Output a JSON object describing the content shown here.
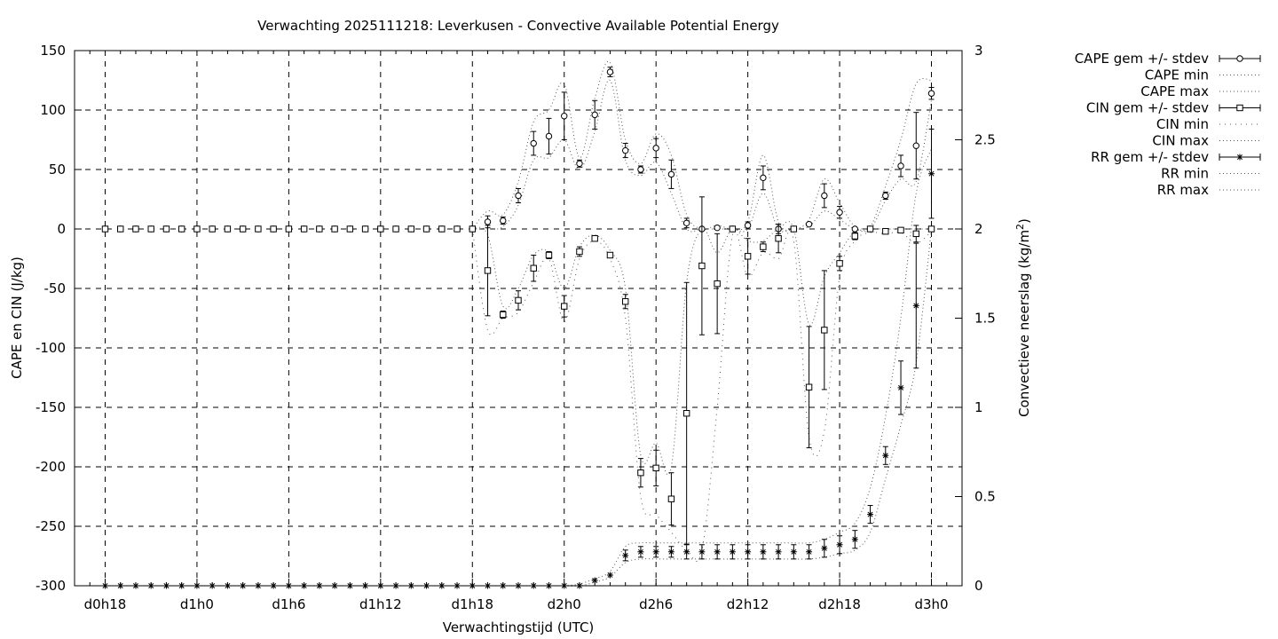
{
  "chart_data": {
    "type": "line",
    "title": "Verwachting 2025111218: Leverkusen - Convective Available Potential Energy",
    "xlabel": "Verwachtingstijd (UTC)",
    "ylabel": "CAPE en CIN (J/kg)",
    "y2label_main": "Convectieve neerslag (kg/m",
    "y2label_sup": "2",
    "y2label_end": ")",
    "x_unit": "hours since d0h18",
    "xlim": [
      -2,
      56
    ],
    "ylim": [
      -300,
      150
    ],
    "y2lim": [
      0,
      3
    ],
    "x_ticks": [
      {
        "x": 0,
        "label": "d0h18"
      },
      {
        "x": 6,
        "label": "d1h0"
      },
      {
        "x": 12,
        "label": "d1h6"
      },
      {
        "x": 18,
        "label": "d1h12"
      },
      {
        "x": 24,
        "label": "d1h18"
      },
      {
        "x": 30,
        "label": "d2h0"
      },
      {
        "x": 36,
        "label": "d2h6"
      },
      {
        "x": 42,
        "label": "d2h12"
      },
      {
        "x": 48,
        "label": "d2h18"
      },
      {
        "x": 54,
        "label": "d3h0"
      }
    ],
    "y_ticks": [
      150,
      100,
      50,
      0,
      -50,
      -100,
      -150,
      -200,
      -250,
      -300
    ],
    "y2_ticks": [
      "3",
      "2.5",
      "2",
      "1.5",
      "1",
      "0.5",
      "0"
    ],
    "grid": true,
    "legend_position": "outside-right",
    "legend": [
      {
        "label": "CAPE gem +/- stdev",
        "style": "errorbar-circle"
      },
      {
        "label": "CAPE min",
        "style": "dotted"
      },
      {
        "label": "CAPE max",
        "style": "dotted"
      },
      {
        "label": "CIN gem +/- stdev",
        "style": "errorbar-square"
      },
      {
        "label": "CIN min",
        "style": "dotted-sparse"
      },
      {
        "label": "CIN max",
        "style": "dotted"
      },
      {
        "label": "RR gem +/- stdev",
        "style": "errorbar-star"
      },
      {
        "label": "RR min",
        "style": "dotted"
      },
      {
        "label": "RR max",
        "style": "dotted"
      }
    ],
    "series": [
      {
        "name": "CAPE gem +/- stdev",
        "axis": "y",
        "marker": "circle",
        "x": [
          0,
          1,
          2,
          3,
          4,
          5,
          6,
          7,
          8,
          9,
          10,
          11,
          12,
          13,
          14,
          15,
          16,
          17,
          18,
          19,
          20,
          21,
          22,
          23,
          24,
          25,
          26,
          27,
          28,
          29,
          30,
          31,
          32,
          33,
          34,
          35,
          36,
          37,
          38,
          39,
          40,
          41,
          42,
          43,
          44,
          45,
          46,
          47,
          48,
          49,
          50,
          51,
          52,
          53,
          54
        ],
        "y": [
          0,
          0,
          0,
          0,
          0,
          0,
          0,
          0,
          0,
          0,
          0,
          0,
          0,
          0,
          0,
          0,
          0,
          0,
          0,
          0,
          0,
          0,
          0,
          0,
          0,
          6,
          7,
          28,
          72,
          78,
          95,
          55,
          96,
          132,
          66,
          50,
          68,
          46,
          5,
          0,
          1,
          0,
          3,
          43,
          0,
          0,
          4,
          28,
          14,
          0,
          0,
          28,
          53,
          70,
          114
        ],
        "err": [
          0,
          0,
          0,
          0,
          0,
          0,
          0,
          0,
          0,
          0,
          0,
          0,
          0,
          0,
          0,
          0,
          0,
          0,
          0,
          0,
          0,
          0,
          0,
          0,
          0,
          5,
          3,
          6,
          10,
          15,
          20,
          3,
          12,
          4,
          6,
          3,
          8,
          12,
          4,
          0,
          1,
          0,
          3,
          10,
          4,
          0,
          1,
          10,
          5,
          1,
          1,
          3,
          9,
          28,
          5
        ]
      },
      {
        "name": "CAPE min",
        "axis": "y",
        "x": [
          24,
          25,
          26,
          27,
          28,
          29,
          30,
          31,
          32,
          33,
          34,
          35,
          36,
          37,
          38,
          39,
          40,
          41,
          42,
          43,
          44,
          45,
          46,
          47,
          48,
          49,
          50,
          51,
          52,
          53,
          54
        ],
        "y": [
          0,
          0,
          2,
          20,
          58,
          60,
          75,
          50,
          82,
          125,
          58,
          45,
          56,
          30,
          0,
          0,
          0,
          0,
          0,
          30,
          0,
          0,
          2,
          15,
          8,
          0,
          0,
          24,
          42,
          40,
          108
        ]
      },
      {
        "name": "CAPE max",
        "axis": "y",
        "x": [
          24,
          25,
          26,
          27,
          28,
          29,
          30,
          31,
          32,
          33,
          34,
          35,
          36,
          37,
          38,
          39,
          40,
          41,
          42,
          43,
          44,
          45,
          46,
          47,
          48,
          49,
          50,
          51,
          52,
          53,
          54
        ],
        "y": [
          0,
          15,
          12,
          40,
          90,
          100,
          122,
          60,
          110,
          140,
          75,
          55,
          80,
          62,
          12,
          0,
          3,
          0,
          6,
          62,
          6,
          0,
          8,
          42,
          22,
          2,
          2,
          36,
          75,
          122,
          125
        ]
      },
      {
        "name": "CIN gem +/- stdev",
        "axis": "y",
        "marker": "square",
        "x": [
          0,
          1,
          2,
          3,
          4,
          5,
          6,
          7,
          8,
          9,
          10,
          11,
          12,
          13,
          14,
          15,
          16,
          17,
          18,
          19,
          20,
          21,
          22,
          23,
          24,
          25,
          26,
          27,
          28,
          29,
          30,
          31,
          32,
          33,
          34,
          35,
          36,
          37,
          38,
          39,
          40,
          41,
          42,
          43,
          44,
          45,
          46,
          47,
          48,
          49,
          50,
          51,
          52,
          53,
          54
        ],
        "y": [
          0,
          0,
          0,
          0,
          0,
          0,
          0,
          0,
          0,
          0,
          0,
          0,
          0,
          0,
          0,
          0,
          0,
          0,
          0,
          0,
          0,
          0,
          0,
          0,
          0,
          -35,
          -72,
          -60,
          -33,
          -22,
          -65,
          -19,
          -8,
          -22,
          -61,
          -205,
          -201,
          -227,
          -155,
          -31,
          -46,
          0,
          -23,
          -15,
          -8,
          0,
          -133,
          -85,
          -29,
          -6,
          0,
          -2,
          -1,
          -4,
          0
        ],
        "err": [
          0,
          0,
          0,
          0,
          0,
          0,
          0,
          0,
          0,
          0,
          0,
          0,
          0,
          0,
          0,
          0,
          0,
          0,
          0,
          0,
          0,
          0,
          0,
          0,
          0,
          38,
          3,
          8,
          11,
          3,
          9,
          4,
          1,
          2,
          6,
          12,
          15,
          22,
          110,
          58,
          42,
          0,
          15,
          4,
          12,
          0,
          51,
          50,
          6,
          3,
          1,
          1,
          1,
          7,
          1
        ]
      },
      {
        "name": "CIN min",
        "axis": "y",
        "x": [
          24,
          25,
          26,
          27,
          28,
          29,
          30,
          31,
          32,
          33,
          34,
          35,
          36,
          37,
          38,
          39,
          40,
          41,
          42,
          43,
          44,
          45,
          46,
          47,
          48,
          49,
          50,
          51,
          52,
          53,
          54
        ],
        "y": [
          0,
          -85,
          -75,
          -70,
          -45,
          -25,
          -78,
          -25,
          -10,
          -25,
          -75,
          -225,
          -240,
          -255,
          -270,
          -270,
          -150,
          -5,
          -40,
          -20,
          -25,
          -10,
          -175,
          -170,
          -40,
          -10,
          -3,
          -4,
          -3,
          -12,
          -2
        ]
      },
      {
        "name": "CIN max",
        "axis": "y",
        "x": [
          24,
          25,
          26,
          27,
          28,
          29,
          30,
          31,
          32,
          33,
          34,
          35,
          36,
          37,
          38,
          39,
          40,
          41,
          42,
          43,
          44,
          45,
          46,
          47,
          48,
          49,
          50,
          51,
          52,
          53,
          54
        ],
        "y": [
          0,
          -5,
          -65,
          -50,
          -22,
          -20,
          -50,
          -15,
          -5,
          -18,
          -50,
          -190,
          -180,
          -200,
          -45,
          0,
          -20,
          0,
          -10,
          -10,
          0,
          0,
          -80,
          -40,
          -20,
          -2,
          0,
          0,
          0,
          0,
          0
        ]
      },
      {
        "name": "RR gem +/- stdev",
        "axis": "y2",
        "marker": "star",
        "x": [
          0,
          1,
          2,
          3,
          4,
          5,
          6,
          7,
          8,
          9,
          10,
          11,
          12,
          13,
          14,
          15,
          16,
          17,
          18,
          19,
          20,
          21,
          22,
          23,
          24,
          25,
          26,
          27,
          28,
          29,
          30,
          31,
          32,
          33,
          34,
          35,
          36,
          37,
          38,
          39,
          40,
          41,
          42,
          43,
          44,
          45,
          46,
          47,
          48,
          49,
          50,
          51,
          52,
          53,
          54
        ],
        "y": [
          0,
          0,
          0,
          0,
          0,
          0,
          0,
          0,
          0,
          0,
          0,
          0,
          0,
          0,
          0,
          0,
          0,
          0,
          0,
          0,
          0,
          0,
          0,
          0,
          0,
          0,
          0,
          0,
          0,
          0,
          0,
          0,
          0.03,
          0.06,
          0.17,
          0.19,
          0.19,
          0.19,
          0.19,
          0.19,
          0.19,
          0.19,
          0.19,
          0.19,
          0.19,
          0.19,
          0.19,
          0.21,
          0.23,
          0.26,
          0.4,
          0.73,
          1.11,
          1.57,
          2.31
        ],
        "err": [
          0,
          0,
          0,
          0,
          0,
          0,
          0,
          0,
          0,
          0,
          0,
          0,
          0,
          0,
          0,
          0,
          0,
          0,
          0,
          0,
          0,
          0,
          0,
          0,
          0,
          0,
          0,
          0,
          0,
          0,
          0,
          0,
          0,
          0,
          0.03,
          0.03,
          0.03,
          0.03,
          0.04,
          0.04,
          0.04,
          0.04,
          0.04,
          0.04,
          0.04,
          0.04,
          0.04,
          0.05,
          0.05,
          0.05,
          0.05,
          0.05,
          0.15,
          0.35,
          0.25
        ]
      },
      {
        "name": "RR min",
        "axis": "y2",
        "x": [
          30,
          31,
          32,
          33,
          34,
          35,
          36,
          37,
          38,
          39,
          40,
          41,
          42,
          43,
          44,
          45,
          46,
          47,
          48,
          49,
          50,
          51,
          52,
          53,
          54
        ],
        "y": [
          0,
          0,
          0.02,
          0.05,
          0.13,
          0.15,
          0.15,
          0.15,
          0.15,
          0.15,
          0.15,
          0.15,
          0.15,
          0.15,
          0.15,
          0.15,
          0.15,
          0.16,
          0.18,
          0.2,
          0.3,
          0.6,
          0.9,
          1.25,
          2.0
        ]
      },
      {
        "name": "RR max",
        "axis": "y2",
        "x": [
          30,
          31,
          32,
          33,
          34,
          35,
          36,
          37,
          38,
          39,
          40,
          41,
          42,
          43,
          44,
          45,
          46,
          47,
          48,
          49,
          50,
          51,
          52,
          53,
          54
        ],
        "y": [
          0,
          0.01,
          0.04,
          0.08,
          0.22,
          0.24,
          0.24,
          0.24,
          0.24,
          0.24,
          0.24,
          0.24,
          0.24,
          0.24,
          0.24,
          0.24,
          0.24,
          0.26,
          0.3,
          0.35,
          0.55,
          0.95,
          1.5,
          2.2,
          2.45
        ]
      }
    ]
  }
}
